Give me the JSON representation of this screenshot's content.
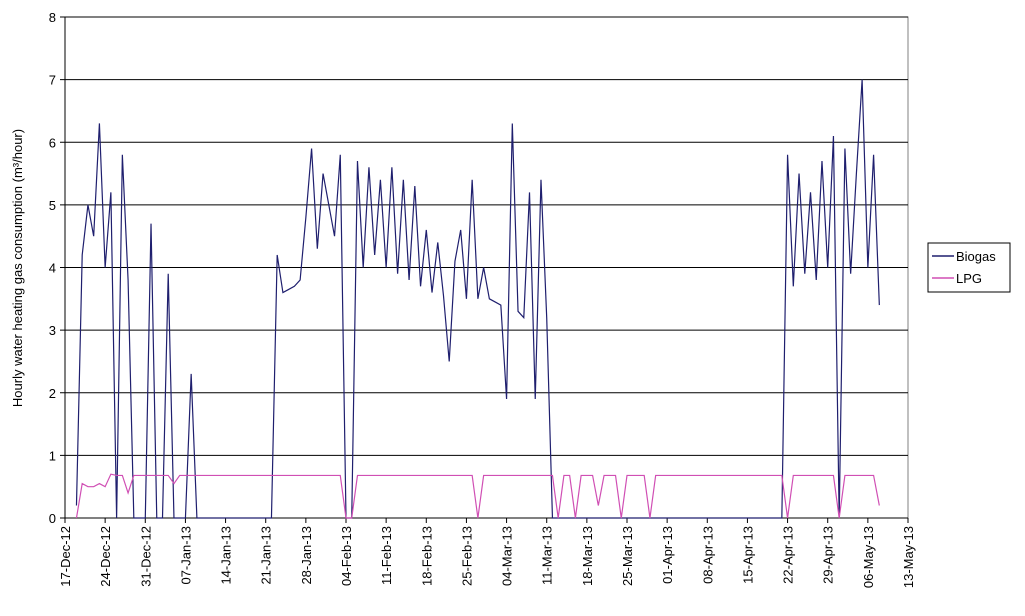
{
  "chart_data": {
    "type": "line",
    "ylabel": "Hourly water heating gas consumption (m³/hour)",
    "xlim": [
      "17-Dec-12",
      "13-May-13"
    ],
    "xticks": [
      "17-Dec-12",
      "24-Dec-12",
      "31-Dec-12",
      "07-Jan-13",
      "14-Jan-13",
      "21-Jan-13",
      "28-Jan-13",
      "04-Feb-13",
      "11-Feb-13",
      "18-Feb-13",
      "25-Feb-13",
      "04-Mar-13",
      "11-Mar-13",
      "18-Mar-13",
      "25-Mar-13",
      "01-Apr-13",
      "08-Apr-13",
      "15-Apr-13",
      "22-Apr-13",
      "29-Apr-13",
      "06-May-13",
      "13-May-13"
    ],
    "ylim": [
      0,
      8
    ],
    "yticks": [
      0,
      1,
      2,
      3,
      4,
      5,
      6,
      7,
      8
    ],
    "grid": true,
    "legend": "right",
    "x": [
      "19-Dec-12",
      "20-Dec-12",
      "21-Dec-12",
      "22-Dec-12",
      "23-Dec-12",
      "24-Dec-12",
      "25-Dec-12",
      "26-Dec-12",
      "27-Dec-12",
      "28-Dec-12",
      "29-Dec-12",
      "30-Dec-12",
      "31-Dec-12",
      "01-Jan-13",
      "02-Jan-13",
      "03-Jan-13",
      "04-Jan-13",
      "05-Jan-13",
      "06-Jan-13",
      "07-Jan-13",
      "08-Jan-13",
      "09-Jan-13",
      "10-Jan-13",
      "11-Jan-13",
      "12-Jan-13",
      "13-Jan-13",
      "14-Jan-13",
      "15-Jan-13",
      "16-Jan-13",
      "17-Jan-13",
      "18-Jan-13",
      "19-Jan-13",
      "20-Jan-13",
      "21-Jan-13",
      "22-Jan-13",
      "23-Jan-13",
      "24-Jan-13",
      "25-Jan-13",
      "26-Jan-13",
      "27-Jan-13",
      "28-Jan-13",
      "29-Jan-13",
      "30-Jan-13",
      "31-Jan-13",
      "01-Feb-13",
      "02-Feb-13",
      "03-Feb-13",
      "04-Feb-13",
      "05-Feb-13",
      "06-Feb-13",
      "07-Feb-13",
      "08-Feb-13",
      "09-Feb-13",
      "10-Feb-13",
      "11-Feb-13",
      "12-Feb-13",
      "13-Feb-13",
      "14-Feb-13",
      "15-Feb-13",
      "16-Feb-13",
      "17-Feb-13",
      "18-Feb-13",
      "19-Feb-13",
      "20-Feb-13",
      "21-Feb-13",
      "22-Feb-13",
      "23-Feb-13",
      "24-Feb-13",
      "25-Feb-13",
      "26-Feb-13",
      "27-Feb-13",
      "28-Feb-13",
      "01-Mar-13",
      "02-Mar-13",
      "03-Mar-13",
      "04-Mar-13",
      "05-Mar-13",
      "06-Mar-13",
      "07-Mar-13",
      "08-Mar-13",
      "09-Mar-13",
      "10-Mar-13",
      "11-Mar-13",
      "12-Mar-13",
      "13-Mar-13",
      "14-Mar-13",
      "15-Mar-13",
      "16-Mar-13",
      "17-Mar-13",
      "18-Mar-13",
      "19-Mar-13",
      "20-Mar-13",
      "21-Mar-13",
      "22-Mar-13",
      "23-Mar-13",
      "24-Mar-13",
      "25-Mar-13",
      "26-Mar-13",
      "27-Mar-13",
      "28-Mar-13",
      "29-Mar-13",
      "30-Mar-13",
      "31-Mar-13",
      "01-Apr-13",
      "02-Apr-13",
      "03-Apr-13",
      "04-Apr-13",
      "05-Apr-13",
      "06-Apr-13",
      "07-Apr-13",
      "08-Apr-13",
      "09-Apr-13",
      "10-Apr-13",
      "11-Apr-13",
      "12-Apr-13",
      "13-Apr-13",
      "14-Apr-13",
      "15-Apr-13",
      "16-Apr-13",
      "17-Apr-13",
      "18-Apr-13",
      "19-Apr-13",
      "20-Apr-13",
      "21-Apr-13",
      "22-Apr-13",
      "23-Apr-13",
      "24-Apr-13",
      "25-Apr-13",
      "26-Apr-13",
      "27-Apr-13",
      "28-Apr-13",
      "29-Apr-13",
      "30-Apr-13",
      "01-May-13",
      "02-May-13",
      "03-May-13",
      "04-May-13",
      "05-May-13",
      "06-May-13",
      "07-May-13",
      "08-May-13"
    ],
    "series": [
      {
        "name": "Biogas",
        "color": "#1f1f6e",
        "values": [
          0.2,
          4.2,
          5.0,
          4.5,
          6.3,
          4.0,
          5.2,
          0,
          5.8,
          3.8,
          0,
          0,
          0,
          4.7,
          0,
          0,
          3.9,
          0,
          0,
          0,
          2.3,
          0,
          0,
          0,
          0,
          0,
          0,
          0,
          0,
          0,
          0,
          0,
          0,
          0,
          0,
          4.2,
          3.6,
          3.65,
          3.7,
          3.8,
          4.8,
          5.9,
          4.3,
          5.5,
          5.0,
          4.5,
          5.8,
          0,
          0,
          5.7,
          4.0,
          5.6,
          4.2,
          5.4,
          4.0,
          5.6,
          3.9,
          5.4,
          3.8,
          5.3,
          3.7,
          4.6,
          3.6,
          4.4,
          3.55,
          2.5,
          4.1,
          4.6,
          3.5,
          5.4,
          3.5,
          4.0,
          3.5,
          3.45,
          3.4,
          1.9,
          6.3,
          3.3,
          3.2,
          5.2,
          1.9,
          5.4,
          3.2,
          0,
          0,
          0,
          0,
          0,
          0,
          0,
          0,
          0,
          0,
          0,
          0,
          0,
          0,
          0,
          0,
          0,
          0,
          0,
          0,
          0,
          0,
          0,
          0,
          0,
          0,
          0,
          0,
          0,
          0,
          0,
          0,
          0,
          0,
          0,
          0,
          0,
          0,
          0,
          0,
          0,
          5.8,
          3.7,
          5.5,
          3.9,
          5.2,
          3.8,
          5.7,
          4.0,
          6.1,
          0,
          5.9,
          3.9,
          5.5,
          7.0,
          4.0,
          5.8,
          3.4
        ]
      },
      {
        "name": "LPG",
        "color": "#d04fb4",
        "values": [
          0,
          0.55,
          0.5,
          0.5,
          0.55,
          0.5,
          0.7,
          0.68,
          0.68,
          0.4,
          0.68,
          0.68,
          0.68,
          0.68,
          0.68,
          0.68,
          0.68,
          0.55,
          0.68,
          0.68,
          0.68,
          0.68,
          0.68,
          0.68,
          0.68,
          0.68,
          0.68,
          0.68,
          0.68,
          0.68,
          0.68,
          0.68,
          0.68,
          0.68,
          0.68,
          0.68,
          0.68,
          0.68,
          0.68,
          0.68,
          0.68,
          0.68,
          0.68,
          0.68,
          0.68,
          0.68,
          0.68,
          0,
          0,
          0.68,
          0.68,
          0.68,
          0.68,
          0.68,
          0.68,
          0.68,
          0.68,
          0.68,
          0.68,
          0.68,
          0.68,
          0.68,
          0.68,
          0.68,
          0.68,
          0.68,
          0.68,
          0.68,
          0.68,
          0.68,
          0,
          0.68,
          0.68,
          0.68,
          0.68,
          0.68,
          0.68,
          0.68,
          0.68,
          0.68,
          0.68,
          0.68,
          0.68,
          0.68,
          0,
          0.68,
          0.68,
          0,
          0.68,
          0.68,
          0.68,
          0.2,
          0.68,
          0.68,
          0.68,
          0,
          0.68,
          0.68,
          0.68,
          0.68,
          0,
          0.68,
          0.68,
          0.68,
          0.68,
          0.68,
          0.68,
          0.68,
          0.68,
          0.68,
          0.68,
          0.68,
          0.68,
          0.68,
          0.68,
          0.68,
          0.68,
          0.68,
          0.68,
          0.68,
          0.68,
          0.68,
          0.68,
          0.68,
          0,
          0.68,
          0.68,
          0.68,
          0.68,
          0.68,
          0.68,
          0.68,
          0.68,
          0,
          0.68,
          0.68,
          0.68,
          0.68,
          0.68,
          0.68,
          0.2
        ]
      }
    ]
  }
}
